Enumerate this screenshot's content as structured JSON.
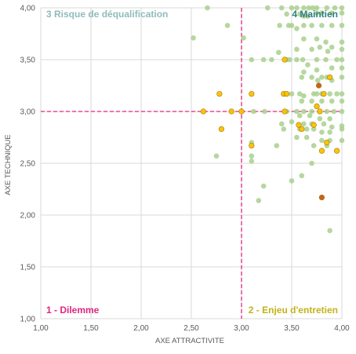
{
  "chart_data": {
    "type": "scatter",
    "xlabel": "AXE ATTRACTIVITE",
    "ylabel": "AXE TECHNIQUE",
    "xlim": [
      1.0,
      4.0
    ],
    "ylim": [
      1.0,
      4.0
    ],
    "x_ticks": [
      "1,00",
      "1,50",
      "2,00",
      "2,50",
      "3,00",
      "3,50",
      "4,00"
    ],
    "y_ticks": [
      "1,00",
      "1,50",
      "2,00",
      "2,50",
      "3,00",
      "3,50",
      "4,00"
    ],
    "grid": true,
    "threshold_x": 3.0,
    "threshold_y": 3.0,
    "quadrant_labels": [
      {
        "text": "3 Risque de déqualification",
        "color": "#8fbcbb"
      },
      {
        "text": "4 Maintien",
        "color": "#2e8080"
      },
      {
        "text": "1 - Dilemme",
        "color": "#e0267d"
      },
      {
        "text": "2 - Enjeu d'entretien",
        "color": "#c2b21a"
      }
    ],
    "colors": {
      "threshold_line": "#e0267d",
      "grid": "#d9d9d9",
      "axis_text": "#595959"
    },
    "series": [
      {
        "color": "#a9d08e",
        "points": [
          [
            2.52,
            3.71
          ],
          [
            2.66,
            4.0
          ],
          [
            2.86,
            3.83
          ],
          [
            3.02,
            3.71
          ],
          [
            2.75,
            2.57
          ],
          [
            3.1,
            2.57
          ],
          [
            3.1,
            2.52
          ],
          [
            3.17,
            2.14
          ],
          [
            3.22,
            2.28
          ],
          [
            3.35,
            2.67
          ],
          [
            3.5,
            2.33
          ],
          [
            3.6,
            2.38
          ],
          [
            3.7,
            2.5
          ],
          [
            3.88,
            1.85
          ],
          [
            3.12,
            3.0
          ],
          [
            3.23,
            3.0
          ],
          [
            3.1,
            3.5
          ],
          [
            3.22,
            3.5
          ],
          [
            3.3,
            3.5
          ],
          [
            3.37,
            3.57
          ],
          [
            3.45,
            3.5
          ],
          [
            3.48,
            3.5
          ],
          [
            3.55,
            3.5
          ],
          [
            3.61,
            3.5
          ],
          [
            3.66,
            3.45
          ],
          [
            3.75,
            3.5
          ],
          [
            3.84,
            3.5
          ],
          [
            3.95,
            3.5
          ],
          [
            4.0,
            3.5
          ],
          [
            3.38,
            3.83
          ],
          [
            3.47,
            3.83
          ],
          [
            3.55,
            3.8
          ],
          [
            3.62,
            3.83
          ],
          [
            3.7,
            3.83
          ],
          [
            3.8,
            3.83
          ],
          [
            3.9,
            3.83
          ],
          [
            4.0,
            3.83
          ],
          [
            3.26,
            4.0
          ],
          [
            3.4,
            4.0
          ],
          [
            3.5,
            4.0
          ],
          [
            3.55,
            4.0
          ],
          [
            3.62,
            4.0
          ],
          [
            3.67,
            4.0
          ],
          [
            3.71,
            4.0
          ],
          [
            3.75,
            4.0
          ],
          [
            3.85,
            4.0
          ],
          [
            3.93,
            4.0
          ],
          [
            4.0,
            4.0
          ],
          [
            3.45,
            3.94
          ],
          [
            3.58,
            3.94
          ],
          [
            3.66,
            3.92
          ],
          [
            3.75,
            3.95
          ],
          [
            3.8,
            3.95
          ],
          [
            3.9,
            3.95
          ],
          [
            4.0,
            3.95
          ],
          [
            3.62,
            3.7
          ],
          [
            3.75,
            3.7
          ],
          [
            3.84,
            3.67
          ],
          [
            3.9,
            3.62
          ],
          [
            4.0,
            3.67
          ],
          [
            3.55,
            3.6
          ],
          [
            3.7,
            3.6
          ],
          [
            3.78,
            3.62
          ],
          [
            3.86,
            3.58
          ],
          [
            4.0,
            3.6
          ],
          [
            3.6,
            3.33
          ],
          [
            3.7,
            3.33
          ],
          [
            3.76,
            3.3
          ],
          [
            3.8,
            3.33
          ],
          [
            3.85,
            3.33
          ],
          [
            3.9,
            3.3
          ],
          [
            4.0,
            3.33
          ],
          [
            3.62,
            3.38
          ],
          [
            3.75,
            3.4
          ],
          [
            3.9,
            3.42
          ],
          [
            4.0,
            3.42
          ],
          [
            3.44,
            3.17
          ],
          [
            3.5,
            3.17
          ],
          [
            3.58,
            3.17
          ],
          [
            3.62,
            3.15
          ],
          [
            3.72,
            3.17
          ],
          [
            3.75,
            3.17
          ],
          [
            3.8,
            3.17
          ],
          [
            3.88,
            3.17
          ],
          [
            3.95,
            3.17
          ],
          [
            4.0,
            3.17
          ],
          [
            3.6,
            3.1
          ],
          [
            3.7,
            3.1
          ],
          [
            3.8,
            3.1
          ],
          [
            3.9,
            3.1
          ],
          [
            4.0,
            3.1
          ],
          [
            3.45,
            3.0
          ],
          [
            3.55,
            3.0
          ],
          [
            3.62,
            3.0
          ],
          [
            3.7,
            3.0
          ],
          [
            3.78,
            3.0
          ],
          [
            3.85,
            3.0
          ],
          [
            3.92,
            3.0
          ],
          [
            4.0,
            3.0
          ],
          [
            3.58,
            2.96
          ],
          [
            3.68,
            2.96
          ],
          [
            3.78,
            2.93
          ],
          [
            3.88,
            2.93
          ],
          [
            3.4,
            2.88
          ],
          [
            3.5,
            2.9
          ],
          [
            3.62,
            2.88
          ],
          [
            3.7,
            2.88
          ],
          [
            3.82,
            2.88
          ],
          [
            3.9,
            2.85
          ],
          [
            4.0,
            2.86
          ],
          [
            3.42,
            2.83
          ],
          [
            3.58,
            2.83
          ],
          [
            3.65,
            2.83
          ],
          [
            3.72,
            2.83
          ],
          [
            3.8,
            2.8
          ],
          [
            3.88,
            2.8
          ],
          [
            4.0,
            2.83
          ],
          [
            3.55,
            2.75
          ],
          [
            3.65,
            2.75
          ],
          [
            3.8,
            2.72
          ],
          [
            3.88,
            2.72
          ],
          [
            4.0,
            2.72
          ],
          [
            3.72,
            2.67
          ],
          [
            3.85,
            2.67
          ],
          [
            3.1,
            2.7
          ],
          [
            3.75,
            3.05
          ],
          [
            3.5,
            3.83
          ],
          [
            3.62,
            3.92
          ]
        ]
      },
      {
        "color": "#ffc000",
        "points": [
          [
            2.62,
            3.0
          ],
          [
            2.78,
            3.17
          ],
          [
            2.8,
            2.83
          ],
          [
            2.9,
            3.0
          ],
          [
            3.0,
            3.0
          ],
          [
            3.1,
            3.17
          ],
          [
            3.1,
            2.67
          ],
          [
            3.42,
            3.17
          ],
          [
            3.45,
            3.17
          ],
          [
            3.43,
            3.5
          ],
          [
            3.43,
            3.0
          ],
          [
            3.57,
            2.87
          ],
          [
            3.6,
            2.83
          ],
          [
            3.72,
            2.87
          ],
          [
            3.78,
            3.0
          ],
          [
            3.82,
            3.17
          ],
          [
            3.8,
            2.62
          ],
          [
            3.85,
            2.7
          ],
          [
            3.88,
            3.33
          ],
          [
            3.95,
            2.62
          ],
          [
            3.75,
            3.05
          ]
        ]
      },
      {
        "color": "#c65911",
        "points": [
          [
            3.77,
            3.25
          ],
          [
            3.8,
            2.17
          ]
        ]
      }
    ]
  }
}
